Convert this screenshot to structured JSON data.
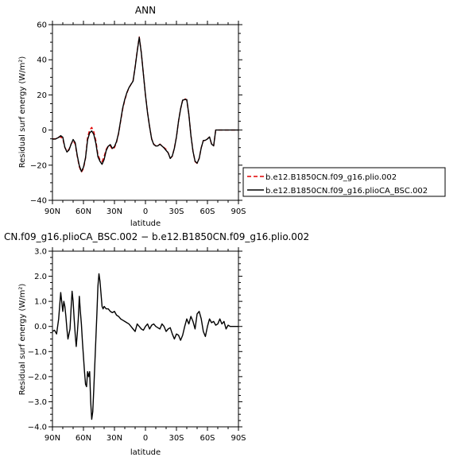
{
  "chart_data": [
    {
      "type": "line",
      "title": "ANN",
      "xlabel": "latitude",
      "ylabel": "Residual surf energy (W/m²)",
      "ylim": [
        -40,
        60
      ],
      "xlim": [
        90,
        -90
      ],
      "xticks": [
        90,
        60,
        30,
        0,
        -30,
        -60,
        -90
      ],
      "xtick_labels": [
        "90N",
        "60N",
        "30N",
        "0",
        "30S",
        "60S",
        "90S"
      ],
      "yticks": [
        -40,
        -20,
        0,
        20,
        40,
        60
      ],
      "ytick_labels": [
        "−40",
        "−20",
        "0",
        "20",
        "40",
        "60"
      ],
      "legend_position": "right",
      "series": [
        {
          "name": "b.e12.B1850CN.f09_g16.plio.002",
          "color": "#e00000",
          "dash": "dashed",
          "x": [
            90,
            87,
            84,
            82,
            80,
            78,
            76,
            74,
            72,
            70,
            68,
            66,
            64,
            62,
            60,
            58,
            56,
            54,
            52,
            50,
            48,
            46,
            44,
            42,
            40,
            38,
            36,
            34,
            32,
            30,
            28,
            26,
            24,
            22,
            20,
            18,
            16,
            14,
            12,
            10,
            8,
            6,
            4,
            2,
            0,
            -2,
            -4,
            -6,
            -8,
            -10,
            -12,
            -14,
            -16,
            -18,
            -20,
            -22,
            -24,
            -26,
            -28,
            -30,
            -32,
            -34,
            -36,
            -38,
            -40,
            -42,
            -44,
            -46,
            -48,
            -50,
            -52,
            -54,
            -56,
            -58,
            -60,
            -62,
            -64,
            -66,
            -68,
            -70,
            -72,
            -74,
            -76,
            -78,
            -80,
            -82,
            -84,
            -86,
            -88,
            -90
          ],
          "values": [
            -5,
            -5,
            -4,
            -4,
            -5,
            -10,
            -12,
            -11,
            -8,
            -6,
            -8,
            -15,
            -21,
            -24,
            -22,
            -16,
            -4,
            0,
            1.5,
            -1,
            -6,
            -14,
            -17,
            -18,
            -15,
            -11,
            -9,
            -9,
            -11,
            -10,
            -7,
            -2,
            5,
            12,
            17,
            21,
            24,
            26,
            28,
            36,
            45,
            53,
            44,
            32,
            20,
            10,
            2,
            -5,
            -8,
            -9,
            -9,
            -8,
            -9,
            -10,
            -11,
            -13,
            -16,
            -15,
            -10,
            -4,
            5,
            12,
            17,
            18,
            17,
            9,
            -3,
            -12,
            -18,
            -19,
            -16,
            -10,
            -6,
            -6,
            -5,
            -4,
            -8,
            -9,
            0,
            0,
            0,
            0,
            0,
            0,
            0,
            0,
            0,
            0,
            0,
            0
          ]
        },
        {
          "name": "b.e12.B1850CN.f09_g16.plioCA_BSC.002",
          "color": "#000000",
          "dash": "solid",
          "x": [
            90,
            87,
            84,
            82,
            80,
            78,
            76,
            74,
            72,
            70,
            68,
            66,
            64,
            62,
            60,
            58,
            56,
            54,
            52,
            50,
            48,
            46,
            44,
            42,
            40,
            38,
            36,
            34,
            32,
            30,
            28,
            26,
            24,
            22,
            20,
            18,
            16,
            14,
            12,
            10,
            8,
            6,
            4,
            2,
            0,
            -2,
            -4,
            -6,
            -8,
            -10,
            -12,
            -14,
            -16,
            -18,
            -20,
            -22,
            -24,
            -26,
            -28,
            -30,
            -32,
            -34,
            -36,
            -38,
            -40,
            -42,
            -44,
            -46,
            -48,
            -50,
            -52,
            -54,
            -56,
            -58,
            -60,
            -62,
            -64,
            -66,
            -68,
            -70,
            -72,
            -74,
            -76,
            -78,
            -80,
            -82,
            -84,
            -86,
            -88,
            -90
          ],
          "values": [
            -5.2,
            -5.1,
            -4.2,
            -3.2,
            -4.1,
            -9.8,
            -12.5,
            -11.4,
            -8.1,
            -5.4,
            -7.2,
            -14.5,
            -20.3,
            -23.6,
            -21.2,
            -15.8,
            -5.6,
            -1.6,
            -0.5,
            -2.5,
            -7.5,
            -15.2,
            -17.8,
            -19.5,
            -16.8,
            -11.7,
            -9.2,
            -8.3,
            -10.5,
            -9.4,
            -6.6,
            -1.7,
            5.5,
            12.6,
            17.5,
            21.3,
            24.1,
            26.0,
            27.8,
            35.7,
            44.7,
            52.8,
            43.9,
            31.9,
            20.0,
            9.9,
            1.9,
            -5.1,
            -8.2,
            -9.1,
            -9.0,
            -8.1,
            -9.1,
            -10.2,
            -11.6,
            -13.0,
            -16.2,
            -14.7,
            -10.4,
            -3.9,
            5.0,
            12.0,
            17.0,
            17.4,
            17.3,
            8.8,
            -3.1,
            -12.1,
            -17.7,
            -18.9,
            -16.2,
            -10.1,
            -6.0,
            -5.8,
            -5.1,
            -3.9,
            -8.0,
            -9.0,
            0,
            0,
            0,
            0,
            0,
            0,
            0,
            0,
            0,
            0,
            0,
            0
          ]
        }
      ]
    },
    {
      "type": "line",
      "title": "CN.f09_g16.plioCA_BSC.002 − b.e12.B1850CN.f09_g16.plio.002",
      "xlabel": "latitude",
      "ylabel": "Residual surf energy (W/m²)",
      "ylim": [
        -4.0,
        3.0
      ],
      "xlim": [
        90,
        -90
      ],
      "xticks": [
        90,
        60,
        30,
        0,
        -30,
        -60,
        -90
      ],
      "xtick_labels": [
        "90N",
        "60N",
        "30N",
        "0",
        "30S",
        "60S",
        "90S"
      ],
      "yticks": [
        -4,
        -3,
        -2,
        -1,
        0,
        1,
        2,
        3
      ],
      "ytick_labels": [
        "−4.0",
        "−3.0",
        "−2.0",
        "−1.0",
        "0.0",
        "1.0",
        "2.0",
        "3.0"
      ],
      "series": [
        {
          "color": "#000000",
          "x": [
            90,
            88,
            86,
            84,
            82,
            80,
            79,
            78,
            77,
            76,
            75,
            74,
            73,
            72,
            71,
            70,
            69,
            68,
            67,
            66,
            65,
            64,
            63,
            62,
            61,
            60,
            59,
            58,
            57,
            56,
            55,
            54,
            53,
            52,
            51,
            50,
            49,
            48,
            47,
            46,
            45,
            44,
            43,
            42,
            41,
            40,
            39,
            38,
            37,
            36,
            34,
            32,
            30,
            28,
            26,
            24,
            22,
            20,
            18,
            16,
            14,
            12,
            10,
            8,
            6,
            4,
            2,
            0,
            -2,
            -4,
            -6,
            -8,
            -10,
            -12,
            -14,
            -16,
            -18,
            -20,
            -22,
            -24,
            -26,
            -28,
            -30,
            -32,
            -34,
            -36,
            -38,
            -40,
            -42,
            -44,
            -46,
            -48,
            -50,
            -52,
            -54,
            -56,
            -58,
            -60,
            -62,
            -64,
            -66,
            -68,
            -70,
            -72,
            -74,
            -76,
            -78,
            -80,
            -82,
            -84,
            -86,
            -88,
            -90
          ],
          "values": [
            -0.2,
            -0.15,
            -0.3,
            0.3,
            1.35,
            0.6,
            1.0,
            0.8,
            0.4,
            -0.1,
            -0.5,
            -0.3,
            -0.1,
            0.7,
            1.4,
            1.0,
            0.3,
            -0.3,
            -0.8,
            -0.3,
            0.3,
            1.2,
            0.6,
            0.1,
            -0.6,
            -1.2,
            -1.8,
            -2.3,
            -2.4,
            -1.8,
            -2.0,
            -1.8,
            -3.0,
            -3.7,
            -3.4,
            -2.5,
            -1.5,
            -0.5,
            0.5,
            1.6,
            2.1,
            1.8,
            1.3,
            0.8,
            0.7,
            0.8,
            0.75,
            0.7,
            0.7,
            0.7,
            0.6,
            0.55,
            0.6,
            0.45,
            0.4,
            0.3,
            0.25,
            0.2,
            0.15,
            0.1,
            0.0,
            -0.1,
            -0.2,
            0.1,
            0.0,
            -0.1,
            -0.15,
            0.0,
            0.1,
            -0.1,
            0.05,
            0.1,
            0.0,
            -0.05,
            -0.1,
            0.1,
            0.0,
            -0.2,
            -0.1,
            -0.05,
            -0.3,
            -0.5,
            -0.3,
            -0.35,
            -0.55,
            -0.35,
            0.0,
            0.3,
            0.1,
            0.4,
            0.2,
            -0.1,
            0.5,
            0.6,
            0.3,
            -0.2,
            -0.4,
            0.0,
            0.3,
            0.15,
            0.2,
            0.05,
            0.1,
            0.3,
            0.1,
            0.2,
            -0.1,
            0.05,
            0.0,
            0.0,
            0.0,
            0.0,
            0.0
          ]
        }
      ]
    }
  ]
}
